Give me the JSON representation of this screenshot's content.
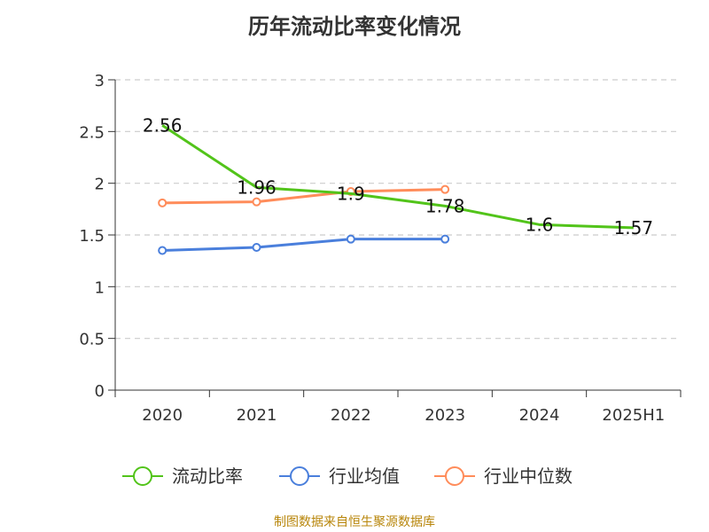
{
  "chart_data": {
    "type": "line",
    "title": "历年流动比率变化情况",
    "categories": [
      "2020",
      "2021",
      "2022",
      "2023",
      "2024",
      "2025H1"
    ],
    "ylim": [
      0,
      3
    ],
    "yticks": [
      "0",
      "0.5",
      "1",
      "1.5",
      "2",
      "2.5",
      "3"
    ],
    "grid": true,
    "legend_position": "bottom",
    "series": [
      {
        "name": "流动比率",
        "color": "#52c41a",
        "marker": "none",
        "values": [
          2.56,
          1.96,
          1.9,
          1.78,
          1.6,
          1.57
        ],
        "labels": [
          "2.56",
          "1.96",
          "1.9",
          "1.78",
          "1.6",
          "1.57"
        ]
      },
      {
        "name": "行业均值",
        "color": "#4a7fdc",
        "marker": "circle",
        "values": [
          1.35,
          1.38,
          1.46,
          1.46,
          null,
          null
        ]
      },
      {
        "name": "行业中位数",
        "color": "#ff8c5a",
        "marker": "circle",
        "values": [
          1.81,
          1.82,
          1.92,
          1.94,
          null,
          null
        ]
      }
    ]
  },
  "source_note": "制图数据来自恒生聚源数据库"
}
